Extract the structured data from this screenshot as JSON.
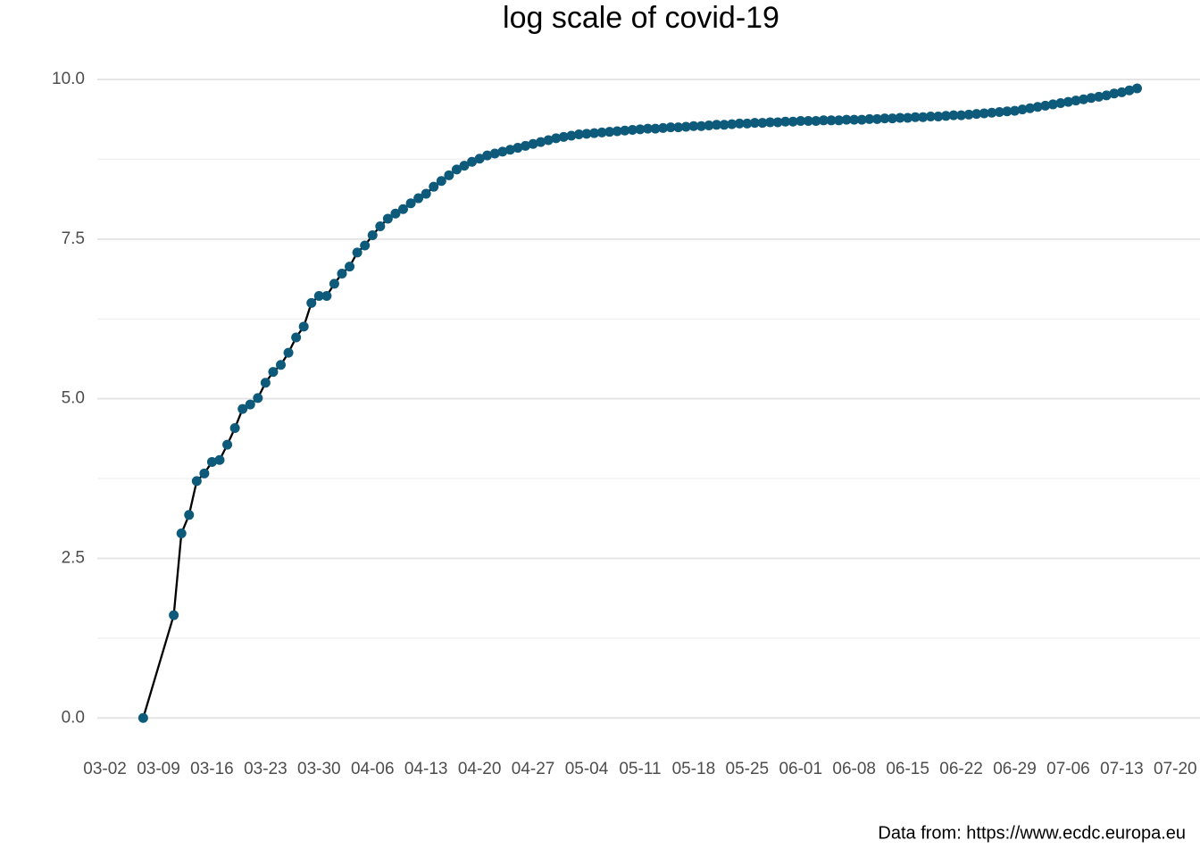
{
  "chart_data": {
    "type": "line",
    "title": "log scale of covid-19",
    "caption": "Data from: https://www.ecdc.europa.eu",
    "x": [
      "03-07",
      "03-11",
      "03-12",
      "03-13",
      "03-14",
      "03-15",
      "03-16",
      "03-17",
      "03-18",
      "03-19",
      "03-20",
      "03-21",
      "03-22",
      "03-23",
      "03-24",
      "03-25",
      "03-26",
      "03-27",
      "03-28",
      "03-29",
      "03-30",
      "03-31",
      "04-01",
      "04-02",
      "04-03",
      "04-04",
      "04-05",
      "04-06",
      "04-07",
      "04-08",
      "04-09",
      "04-10",
      "04-11",
      "04-12",
      "04-13",
      "04-14",
      "04-15",
      "04-16",
      "04-17",
      "04-18",
      "04-19",
      "04-20",
      "04-21",
      "04-22",
      "04-23",
      "04-24",
      "04-25",
      "04-26",
      "04-27",
      "04-28",
      "04-29",
      "04-30",
      "05-01",
      "05-02",
      "05-03",
      "05-04",
      "05-05",
      "05-06",
      "05-07",
      "05-08",
      "05-09",
      "05-10",
      "05-11",
      "05-12",
      "05-13",
      "05-14",
      "05-15",
      "05-16",
      "05-17",
      "05-18",
      "05-19",
      "05-20",
      "05-21",
      "05-22",
      "05-23",
      "05-24",
      "05-25",
      "05-26",
      "05-27",
      "05-28",
      "05-29",
      "05-30",
      "05-31",
      "06-01",
      "06-02",
      "06-03",
      "06-04",
      "06-05",
      "06-06",
      "06-07",
      "06-08",
      "06-09",
      "06-10",
      "06-11",
      "06-12",
      "06-13",
      "06-14",
      "06-15",
      "06-16",
      "06-17",
      "06-18",
      "06-19",
      "06-20",
      "06-21",
      "06-22",
      "06-23",
      "06-24",
      "06-25",
      "06-26",
      "06-27",
      "06-28",
      "06-29",
      "06-30",
      "07-01",
      "07-02",
      "07-03",
      "07-04",
      "07-05",
      "07-06",
      "07-07",
      "07-08",
      "07-09",
      "07-10",
      "07-11",
      "07-12",
      "07-13",
      "07-14",
      "07-15"
    ],
    "series": [
      {
        "line_color": "#000000",
        "color": "#0e5a7a",
        "values": [
          0,
          1.61,
          2.89,
          3.18,
          3.71,
          3.83,
          4.01,
          4.04,
          4.28,
          4.54,
          4.84,
          4.91,
          5.01,
          5.25,
          5.42,
          5.53,
          5.72,
          5.96,
          6.13,
          6.5,
          6.61,
          6.61,
          6.8,
          6.96,
          7.07,
          7.29,
          7.4,
          7.56,
          7.7,
          7.82,
          7.9,
          7.97,
          8.06,
          8.14,
          8.21,
          8.32,
          8.41,
          8.5,
          8.59,
          8.65,
          8.71,
          8.76,
          8.81,
          8.84,
          8.87,
          8.9,
          8.93,
          8.96,
          8.99,
          9.02,
          9.05,
          9.08,
          9.1,
          9.12,
          9.14,
          9.15,
          9.16,
          9.17,
          9.18,
          9.19,
          9.2,
          9.21,
          9.22,
          9.23,
          9.23,
          9.24,
          9.25,
          9.25,
          9.26,
          9.27,
          9.27,
          9.28,
          9.29,
          9.29,
          9.3,
          9.31,
          9.31,
          9.32,
          9.32,
          9.33,
          9.33,
          9.34,
          9.34,
          9.35,
          9.35,
          9.35,
          9.36,
          9.36,
          9.36,
          9.37,
          9.37,
          9.37,
          9.38,
          9.38,
          9.39,
          9.39,
          9.4,
          9.4,
          9.41,
          9.41,
          9.42,
          9.42,
          9.43,
          9.44,
          9.44,
          9.45,
          9.46,
          9.47,
          9.48,
          9.49,
          9.5,
          9.51,
          9.53,
          9.55,
          9.57,
          9.59,
          9.61,
          9.63,
          9.65,
          9.67,
          9.69,
          9.71,
          9.73,
          9.75,
          9.78,
          9.8,
          9.83,
          9.86
        ]
      }
    ],
    "xlim": [
      "03-01",
      "07-23"
    ],
    "xticks": [
      "03-02",
      "03-09",
      "03-16",
      "03-23",
      "03-30",
      "04-06",
      "04-13",
      "04-20",
      "04-27",
      "05-04",
      "05-11",
      "05-18",
      "05-25",
      "06-01",
      "06-08",
      "06-15",
      "06-22",
      "06-29",
      "07-06",
      "07-13",
      "07-20"
    ],
    "ylim": [
      -0.5,
      10.35
    ],
    "yticks": [
      {
        "value": 0,
        "label": "0.0"
      },
      2.5,
      {
        "value": 5,
        "label": "5.0"
      },
      7.5,
      {
        "value": 10,
        "label": "10.0"
      }
    ],
    "grid": true
  }
}
